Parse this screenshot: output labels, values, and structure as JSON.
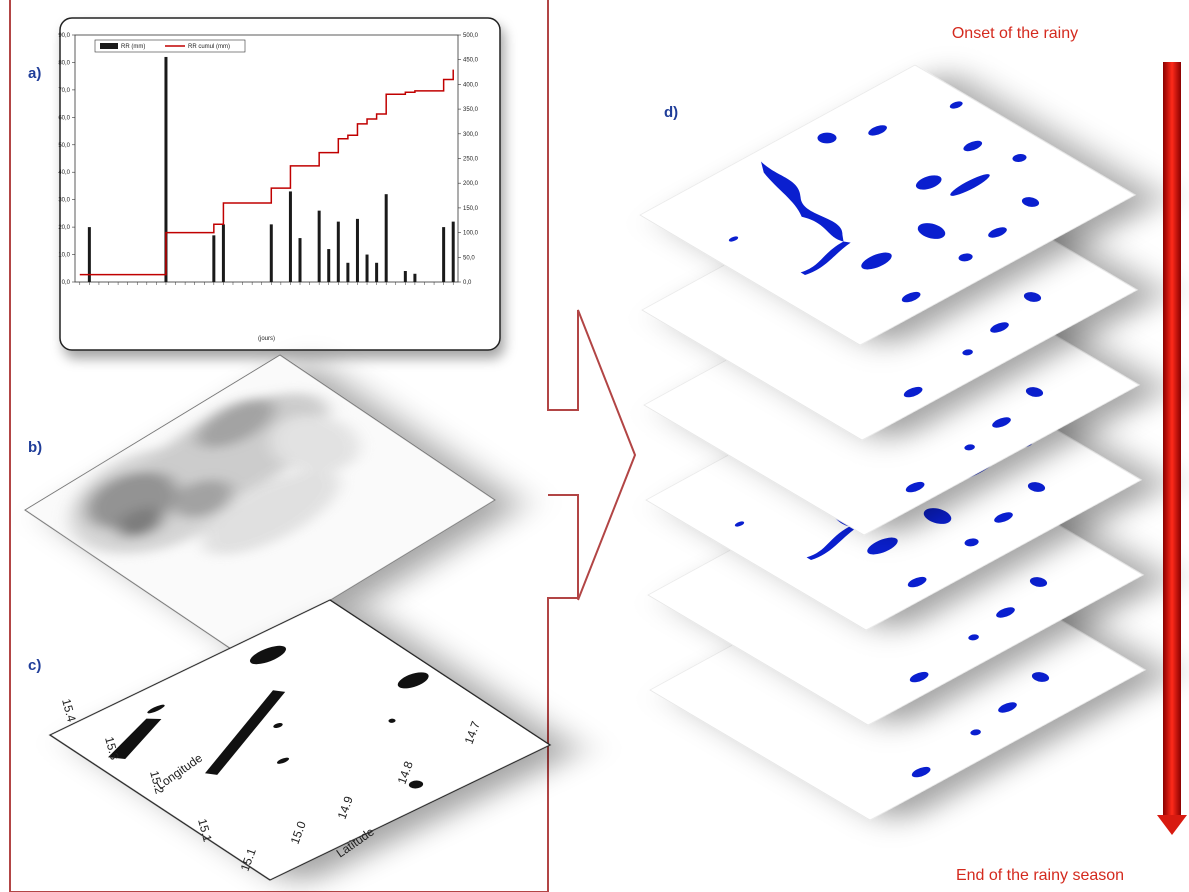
{
  "panel_labels": {
    "a": "a)",
    "b": "b)",
    "c": "c)",
    "d": "d)"
  },
  "onset_label": "Onset of the rainy",
  "end_label": "End of the rainy season",
  "chart_data": {
    "type": "bar",
    "categories": [
      null,
      null,
      null,
      null,
      null,
      null,
      null,
      null,
      null,
      null,
      null,
      null,
      null,
      null,
      null,
      null,
      null,
      null,
      null,
      null,
      null,
      null,
      null,
      null,
      null,
      null,
      null,
      null,
      null,
      null,
      null,
      null,
      null,
      null,
      null,
      null,
      null,
      null,
      null,
      null
    ],
    "x_label": "(jours)",
    "series": [
      {
        "name": "RR (mm)",
        "color": "#1a1a1a",
        "values": [
          0,
          20,
          0,
          0,
          0,
          0,
          0,
          0,
          0,
          82,
          0,
          0,
          0,
          0,
          17,
          21,
          0,
          0,
          0,
          0,
          21,
          0,
          33,
          16,
          0,
          26,
          12,
          22,
          7,
          23,
          10,
          7,
          32,
          0,
          4,
          3,
          0,
          0,
          20,
          22
        ]
      },
      {
        "name": "RR cumul (mm)",
        "color": "#c00000",
        "type": "line",
        "axis": "y2",
        "values": [
          15,
          15,
          15,
          15,
          15,
          15,
          15,
          15,
          15,
          100,
          100,
          100,
          100,
          100,
          117,
          160,
          160,
          160,
          160,
          160,
          190,
          190,
          235,
          235,
          235,
          262,
          262,
          290,
          297,
          320,
          330,
          340,
          380,
          380,
          384,
          387,
          387,
          387,
          410,
          430
        ]
      }
    ],
    "ylim": [
      0,
      90
    ],
    "yticks": [
      {
        "value": 0,
        "label": "0,0"
      },
      {
        "value": 10,
        "label": "10,0"
      },
      {
        "value": 20,
        "label": "20,0"
      },
      {
        "value": 30,
        "label": "30,0"
      },
      {
        "value": 40,
        "label": "40,0"
      },
      {
        "value": 50,
        "label": "50,0"
      },
      {
        "value": 60,
        "label": "60,0"
      },
      {
        "value": 70,
        "label": "70,0"
      },
      {
        "value": 80,
        "label": "80,0"
      },
      {
        "value": 90,
        "label": "90,0"
      }
    ],
    "y2lim": [
      0,
      500
    ],
    "y2ticks": [
      {
        "value": 0,
        "label": "0,0"
      },
      {
        "value": 50,
        "label": "50,0"
      },
      {
        "value": 100,
        "label": "100,0"
      },
      {
        "value": 150,
        "label": "150,0"
      },
      {
        "value": 200,
        "label": "200,0"
      },
      {
        "value": 250,
        "label": "250,0"
      },
      {
        "value": 300,
        "label": "300,0"
      },
      {
        "value": 350,
        "label": "350,0"
      },
      {
        "value": 400,
        "label": "400,0"
      },
      {
        "value": 450,
        "label": "450,0"
      },
      {
        "value": 500,
        "label": "500,0"
      }
    ]
  },
  "map_c": {
    "longitude_ticks": [
      "15.4",
      "15.3",
      "15.2",
      "15.1"
    ],
    "longitude_label": "Longitude",
    "latitude_ticks": [
      "14.7",
      "14.8",
      "14.9",
      "15.0",
      "15.1"
    ],
    "latitude_label": "Latitude"
  }
}
